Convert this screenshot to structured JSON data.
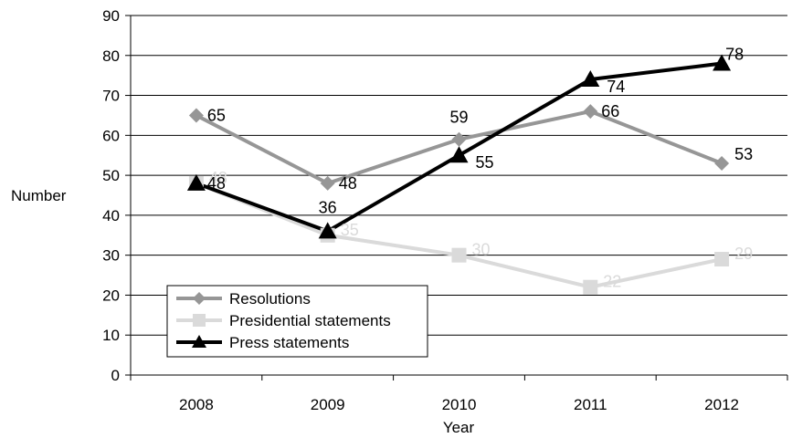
{
  "chart_data": {
    "type": "line",
    "title": "",
    "xlabel": "Year",
    "ylabel": "Number",
    "categories": [
      "2008",
      "2009",
      "2010",
      "2011",
      "2012"
    ],
    "ylim": [
      0,
      90
    ],
    "yticks": [
      0,
      10,
      20,
      30,
      40,
      50,
      60,
      70,
      80,
      90
    ],
    "grid": "horizontal",
    "legend_position": "bottom-left",
    "series": [
      {
        "name": "Resolutions",
        "values": [
          65,
          48,
          59,
          66,
          53
        ],
        "color": "#969696",
        "marker": "diamond"
      },
      {
        "name": "Presidential statements",
        "values": [
          48,
          35,
          30,
          22,
          29
        ],
        "color": "#dadada",
        "marker": "square"
      },
      {
        "name": "Press statements",
        "values": [
          48,
          36,
          55,
          74,
          78
        ],
        "color": "#000000",
        "marker": "triangle"
      }
    ]
  }
}
